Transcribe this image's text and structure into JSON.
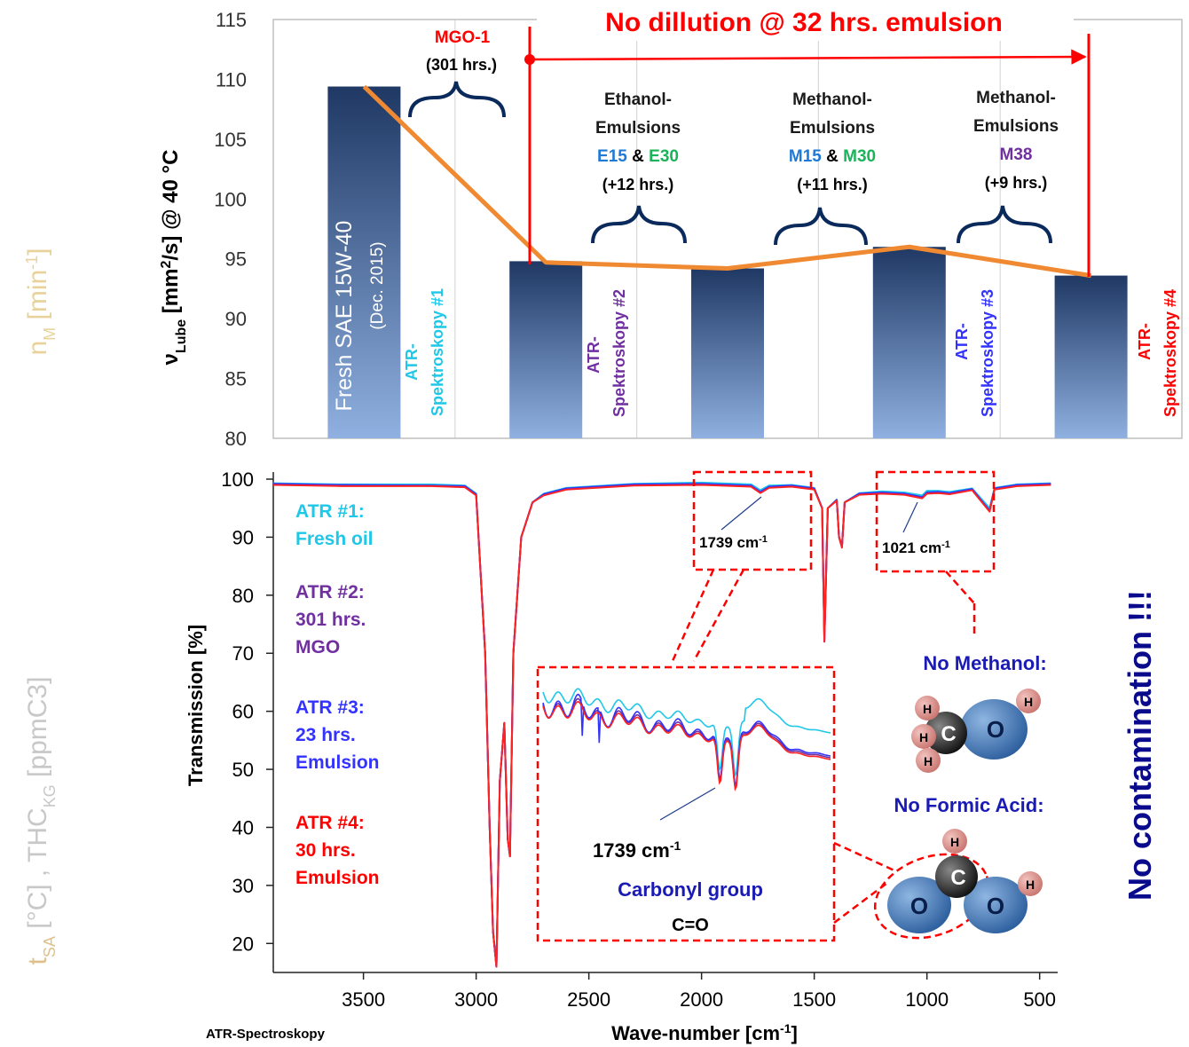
{
  "left_faded_labels": {
    "top": "n",
    "top_sub": "M",
    "top_unit": " [min",
    "top_sup": "-1",
    "top_close": "]",
    "bottom_t": "t",
    "bottom_t_sub": "SA",
    "bottom_t_unit": " [°C] , THC",
    "bottom_thc_sub": "KG",
    "bottom_thc_unit": " [ppmC3]"
  },
  "right_banner": "No contamination !!!",
  "colors": {
    "bar_top": "#1f3864",
    "bar_bottom": "#8fb0e0",
    "orange_line": "#f08a32",
    "red": "#ff0000",
    "cyan": "#1fc8e8",
    "purple": "#7030a0",
    "blue": "#3333ff",
    "dark_blue": "#0a0a8c",
    "green": "#19b35a",
    "mid_blue": "#1e7ad6",
    "spectrum_red": "#ff2222"
  },
  "chart_data": [
    {
      "type": "bar",
      "y_axis_ticks": [
        "115",
        "110",
        "105",
        "100",
        "95",
        "90",
        "85",
        "80"
      ],
      "ylim": [
        80,
        115
      ],
      "ylabel_parts": {
        "nu": "ν",
        "sub": "Lube",
        "unit": " [mm",
        "sup": "2",
        "rest": "/s] @ 40 °C"
      },
      "grid": "vertical major gridlines",
      "bars": [
        {
          "position": 0,
          "value": 109.4
        },
        {
          "position": 1,
          "value": 94.8
        },
        {
          "position": 2,
          "value": 94.2
        },
        {
          "position": 3,
          "value": 96.0
        },
        {
          "position": 4,
          "value": 93.6
        }
      ],
      "line": {
        "points": [
          {
            "position": 0,
            "value": 109.4
          },
          {
            "position": 1,
            "value": 94.7
          },
          {
            "position": 2,
            "value": 94.2
          },
          {
            "position": 3,
            "value": 96.0
          },
          {
            "position": 4,
            "value": 93.6
          }
        ]
      },
      "annotations": {
        "banner": "No dillution @ 32 hrs. emulsion",
        "fresh_bar_line1": "Fresh  SAE 15W-40",
        "fresh_bar_line2": "(Dec. 2015)",
        "mgo_title": "MGO-1",
        "mgo_hours": "(301 hrs.)",
        "ethanol_line1": "Ethanol-",
        "ethanol_line2": "Emulsions",
        "ethanol_e15": "E15",
        "ethanol_amp": " & ",
        "ethanol_e30": "E30",
        "ethanol_hours": "(+12 hrs.)",
        "methanol_a_line1": "Methanol-",
        "methanol_a_line2": "Emulsions",
        "methanol_m15": "M15",
        "methanol_amp": " & ",
        "methanol_m30": "M30",
        "methanol_a_hours": "(+11 hrs.)",
        "methanol_b_line1": "Methanol-",
        "methanol_b_line2": "Emulsions",
        "methanol_m38": "M38",
        "methanol_b_hours": "(+9 hrs.)",
        "atr1_line1": "ATR-",
        "atr1_line2": "Spektroskopy #1",
        "atr2_line1": "ATR-",
        "atr2_line2": "Spektroskopy #2",
        "atr3_line1": "ATR-",
        "atr3_line2": "Spektroskopy #3",
        "atr4_line1": "ATR-",
        "atr4_line2": "Spektroskopy #4"
      }
    },
    {
      "type": "line",
      "xlim": [
        3900,
        420
      ],
      "ylim": [
        15,
        100
      ],
      "x_ticks": [
        "3500",
        "3000",
        "2500",
        "2000",
        "1500",
        "1000",
        "500"
      ],
      "y_ticks": [
        "100",
        "90",
        "80",
        "70",
        "60",
        "50",
        "40",
        "30",
        "20"
      ],
      "xlabel_parts": {
        "main": "Wave-number [cm",
        "sup": "-1",
        "close": "]"
      },
      "ylabel": "Transmission [%]",
      "footer_left": "ATR-Spectroskopy",
      "series": [
        {
          "name": "ATR #1: Fresh oil",
          "color_key": "cyan",
          "x": [
            3900,
            3600,
            3200,
            3050,
            3000,
            2960,
            2940,
            2925,
            2910,
            2895,
            2875,
            2860,
            2850,
            2835,
            2800,
            2750,
            2700,
            2600,
            2300,
            2000,
            1780,
            1739,
            1700,
            1600,
            1500,
            1465,
            1455,
            1440,
            1400,
            1390,
            1377,
            1365,
            1300,
            1200,
            1100,
            1021,
            1000,
            950,
            900,
            800,
            722,
            700,
            600,
            450
          ],
          "y": [
            99.3,
            99.1,
            99.1,
            98.9,
            97.5,
            70,
            40,
            22,
            16,
            48,
            58,
            38,
            35,
            70,
            90,
            96,
            97.5,
            98.5,
            99.2,
            99.4,
            99.1,
            98.1,
            98.9,
            99.0,
            98.5,
            95,
            73,
            95,
            96.5,
            90,
            88.5,
            96,
            97.6,
            97.9,
            97.7,
            97.2,
            98,
            98,
            97.8,
            98.4,
            95,
            98.5,
            99.1,
            99.3
          ]
        },
        {
          "name": "ATR #2: 301 hrs. MGO",
          "color_key": "purple",
          "x": [
            3900,
            3600,
            3200,
            3050,
            3000,
            2960,
            2940,
            2925,
            2910,
            2895,
            2875,
            2860,
            2850,
            2835,
            2800,
            2750,
            2700,
            2600,
            2300,
            2000,
            1780,
            1739,
            1700,
            1600,
            1500,
            1465,
            1455,
            1440,
            1400,
            1390,
            1377,
            1365,
            1300,
            1200,
            1100,
            1021,
            1000,
            950,
            900,
            800,
            722,
            700,
            600,
            450
          ],
          "y": [
            99.1,
            98.9,
            98.9,
            98.7,
            97.3,
            70,
            40,
            22,
            16,
            48,
            58,
            38,
            35,
            70,
            90,
            96,
            97.3,
            98.3,
            99,
            99.1,
            98.8,
            97.7,
            98.6,
            98.8,
            98.3,
            95,
            72,
            95,
            96.4,
            90,
            88.3,
            96,
            97.4,
            97.6,
            97.4,
            96.8,
            97.6,
            97.7,
            97.5,
            98.2,
            94.5,
            98.3,
            98.9,
            99.1
          ]
        },
        {
          "name": "ATR #3: 23 hrs. Emulsion",
          "color_key": "blue",
          "x": [
            3900,
            3600,
            3200,
            3050,
            3000,
            2960,
            2940,
            2925,
            2910,
            2895,
            2875,
            2860,
            2850,
            2835,
            2800,
            2750,
            2700,
            2600,
            2300,
            2000,
            1780,
            1739,
            1700,
            1600,
            1500,
            1465,
            1455,
            1440,
            1400,
            1390,
            1377,
            1365,
            1300,
            1200,
            1100,
            1021,
            1000,
            950,
            900,
            800,
            722,
            700,
            600,
            450
          ],
          "y": [
            99.2,
            99,
            98.9,
            98.8,
            97.4,
            70,
            40,
            22,
            16,
            48,
            58,
            38,
            35,
            70,
            90,
            96,
            97.4,
            98.4,
            99.1,
            99.2,
            98.9,
            97.8,
            98.7,
            98.9,
            98.4,
            95,
            72,
            95,
            96.4,
            90,
            88.4,
            96,
            97.5,
            97.7,
            97.5,
            96.9,
            97.7,
            97.8,
            97.6,
            98.3,
            94.6,
            98.4,
            99,
            99.2
          ]
        },
        {
          "name": "ATR #4: 30 hrs. Emulsion",
          "color_key": "spectrum_red",
          "x": [
            3900,
            3600,
            3200,
            3050,
            3000,
            2960,
            2940,
            2925,
            2910,
            2895,
            2875,
            2860,
            2850,
            2835,
            2800,
            2750,
            2700,
            2600,
            2300,
            2000,
            1780,
            1739,
            1700,
            1600,
            1500,
            1465,
            1455,
            1440,
            1400,
            1390,
            1377,
            1365,
            1300,
            1200,
            1100,
            1021,
            1000,
            950,
            900,
            800,
            722,
            700,
            600,
            450
          ],
          "y": [
            99,
            98.8,
            98.8,
            98.6,
            97.2,
            70,
            40,
            22,
            16,
            48,
            58,
            38,
            35,
            70,
            90,
            96,
            97.2,
            98.2,
            98.9,
            99,
            98.7,
            97.6,
            98.5,
            98.7,
            98.2,
            95,
            72,
            95,
            96.3,
            90,
            88.2,
            96,
            97.3,
            97.5,
            97.3,
            96.7,
            97.5,
            97.6,
            97.4,
            98.1,
            94.4,
            98.2,
            98.8,
            99
          ]
        }
      ],
      "legend": [
        {
          "lines": [
            "ATR #1:",
            "Fresh oil"
          ],
          "color_key": "cyan"
        },
        {
          "lines": [
            "ATR #2:",
            "301 hrs.",
            "MGO"
          ],
          "color_key": "purple"
        },
        {
          "lines": [
            "ATR #3:",
            "23 hrs.",
            "Emulsion"
          ],
          "color_key": "blue"
        },
        {
          "lines": [
            "ATR #4:",
            "30 hrs.",
            "Emulsion"
          ],
          "color_key": "red"
        }
      ],
      "annotations": {
        "peak1739_label": "1739 cm",
        "peak1739_sup": "-1",
        "peak1021_label": "1021 cm",
        "peak1021_sup": "-1",
        "inset_peak_label": "1739 cm",
        "inset_peak_sup": "-1",
        "inset_carbonyl": "Carbonyl group",
        "inset_formula": "C=O",
        "no_methanol": "No Methanol:",
        "no_formic": "No Formic Acid:",
        "atom_h": "H",
        "atom_c": "C",
        "atom_o": "O"
      }
    }
  ]
}
